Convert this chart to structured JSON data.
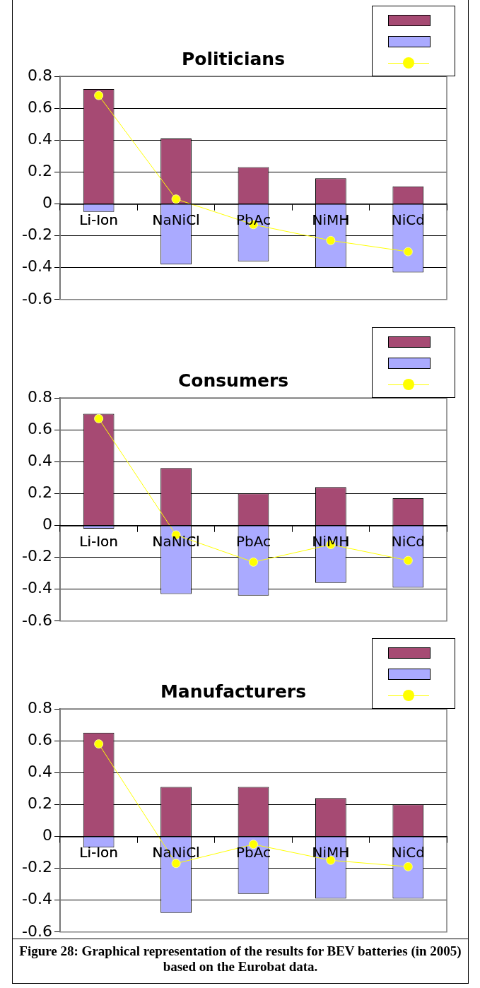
{
  "chart_data": [
    {
      "type": "bar",
      "title": "Politicians",
      "stacked": true,
      "categories": [
        "Li-Ion",
        "NaNiCl",
        "PbAc",
        "NiMH",
        "NiCd"
      ],
      "series": [
        {
          "color": "#a64a73",
          "values": [
            0.72,
            0.41,
            0.23,
            0.16,
            0.11
          ]
        },
        {
          "color": "#aaaaff",
          "values": [
            -0.05,
            -0.38,
            -0.36,
            -0.4,
            -0.43
          ]
        },
        {
          "type": "line",
          "color": "#ffff00",
          "values": [
            0.68,
            0.03,
            -0.13,
            -0.23,
            -0.3
          ]
        }
      ],
      "ylim": [
        -0.6,
        0.8
      ],
      "yticks": [
        -0.6,
        -0.4,
        -0.2,
        0,
        0.2,
        0.4,
        0.6,
        0.8
      ],
      "grid": "y",
      "marker": "circle"
    },
    {
      "type": "bar",
      "title": "Consumers",
      "stacked": true,
      "categories": [
        "Li-Ion",
        "NaNiCl",
        "PbAc",
        "NiMH",
        "NiCd"
      ],
      "series": [
        {
          "color": "#a64a73",
          "values": [
            0.7,
            0.36,
            0.2,
            0.24,
            0.17
          ]
        },
        {
          "color": "#aaaaff",
          "values": [
            -0.02,
            -0.43,
            -0.44,
            -0.36,
            -0.39
          ]
        },
        {
          "type": "line",
          "color": "#ffff00",
          "values": [
            0.67,
            -0.06,
            -0.23,
            -0.12,
            -0.22
          ]
        }
      ],
      "ylim": [
        -0.6,
        0.8
      ],
      "yticks": [
        -0.6,
        -0.4,
        -0.2,
        0,
        0.2,
        0.4,
        0.6,
        0.8
      ],
      "grid": "y",
      "marker": "circle"
    },
    {
      "type": "bar",
      "title": "Manufacturers",
      "stacked": true,
      "categories": [
        "Li-Ion",
        "NaNiCl",
        "PbAc",
        "NiMH",
        "NiCd"
      ],
      "series": [
        {
          "color": "#a64a73",
          "values": [
            0.65,
            0.31,
            0.31,
            0.24,
            0.2
          ]
        },
        {
          "color": "#aaaaff",
          "values": [
            -0.07,
            -0.48,
            -0.36,
            -0.39,
            -0.39
          ]
        },
        {
          "type": "line",
          "color": "#ffff00",
          "values": [
            0.58,
            -0.17,
            -0.05,
            -0.15,
            -0.19
          ]
        }
      ],
      "ylim": [
        -0.6,
        0.8
      ],
      "yticks": [
        -0.6,
        -0.4,
        -0.2,
        0,
        0.2,
        0.4,
        0.6,
        0.8
      ],
      "grid": "y",
      "marker": "circle",
      "annotations": [
        "Figure 28: Graphical representation of the results for BEV batteries (in 2005) based on the Eurobat data."
      ]
    }
  ]
}
